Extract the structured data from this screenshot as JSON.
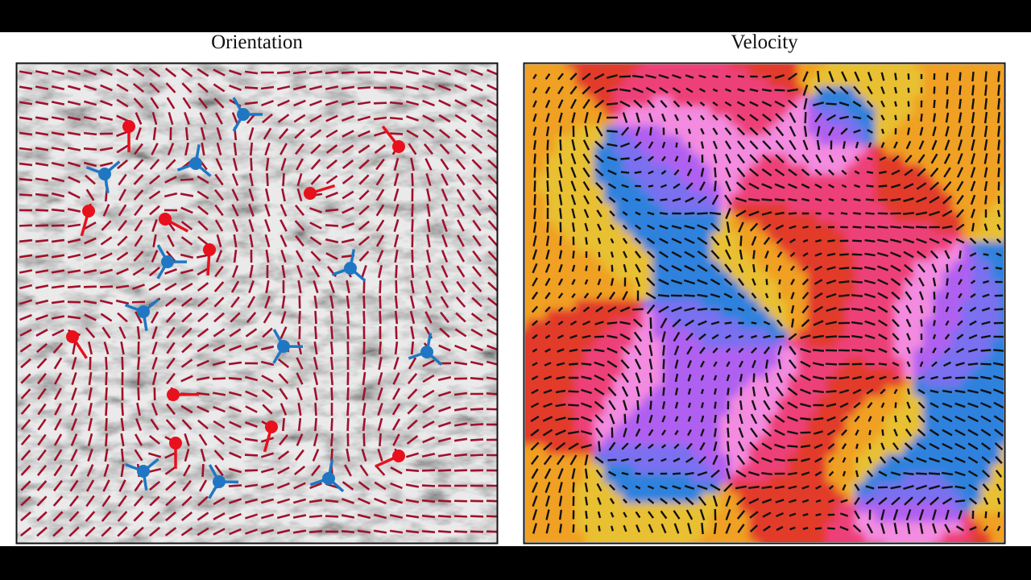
{
  "panels": [
    {
      "title": "Orientation"
    },
    {
      "title": "Velocity"
    }
  ]
}
